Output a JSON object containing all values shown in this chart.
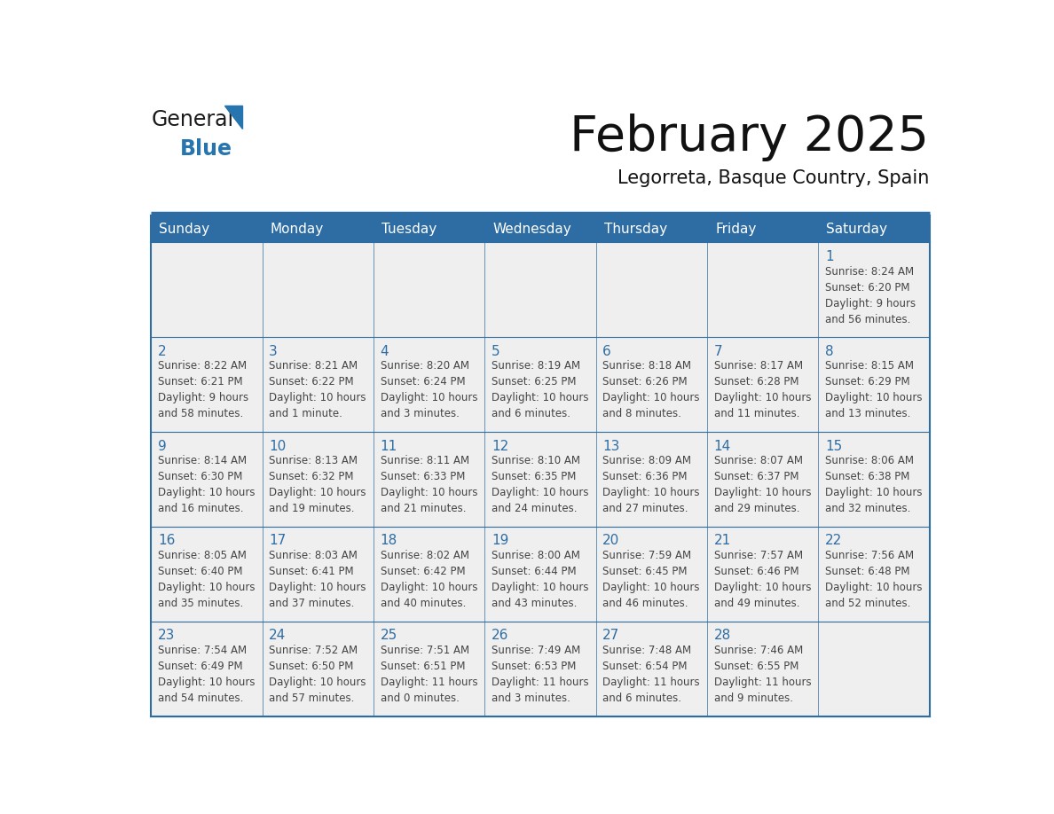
{
  "title": "February 2025",
  "subtitle": "Legorreta, Basque Country, Spain",
  "header_bg": "#2E6DA4",
  "header_text": "#FFFFFF",
  "cell_bg": "#EFEFEF",
  "border_color": "#2E6DA4",
  "text_color": "#444444",
  "day_num_color": "#2E6DA4",
  "days_of_week": [
    "Sunday",
    "Monday",
    "Tuesday",
    "Wednesday",
    "Thursday",
    "Friday",
    "Saturday"
  ],
  "weeks": [
    [
      {
        "day": "",
        "info": ""
      },
      {
        "day": "",
        "info": ""
      },
      {
        "day": "",
        "info": ""
      },
      {
        "day": "",
        "info": ""
      },
      {
        "day": "",
        "info": ""
      },
      {
        "day": "",
        "info": ""
      },
      {
        "day": "1",
        "info": "Sunrise: 8:24 AM\nSunset: 6:20 PM\nDaylight: 9 hours\nand 56 minutes."
      }
    ],
    [
      {
        "day": "2",
        "info": "Sunrise: 8:22 AM\nSunset: 6:21 PM\nDaylight: 9 hours\nand 58 minutes."
      },
      {
        "day": "3",
        "info": "Sunrise: 8:21 AM\nSunset: 6:22 PM\nDaylight: 10 hours\nand 1 minute."
      },
      {
        "day": "4",
        "info": "Sunrise: 8:20 AM\nSunset: 6:24 PM\nDaylight: 10 hours\nand 3 minutes."
      },
      {
        "day": "5",
        "info": "Sunrise: 8:19 AM\nSunset: 6:25 PM\nDaylight: 10 hours\nand 6 minutes."
      },
      {
        "day": "6",
        "info": "Sunrise: 8:18 AM\nSunset: 6:26 PM\nDaylight: 10 hours\nand 8 minutes."
      },
      {
        "day": "7",
        "info": "Sunrise: 8:17 AM\nSunset: 6:28 PM\nDaylight: 10 hours\nand 11 minutes."
      },
      {
        "day": "8",
        "info": "Sunrise: 8:15 AM\nSunset: 6:29 PM\nDaylight: 10 hours\nand 13 minutes."
      }
    ],
    [
      {
        "day": "9",
        "info": "Sunrise: 8:14 AM\nSunset: 6:30 PM\nDaylight: 10 hours\nand 16 minutes."
      },
      {
        "day": "10",
        "info": "Sunrise: 8:13 AM\nSunset: 6:32 PM\nDaylight: 10 hours\nand 19 minutes."
      },
      {
        "day": "11",
        "info": "Sunrise: 8:11 AM\nSunset: 6:33 PM\nDaylight: 10 hours\nand 21 minutes."
      },
      {
        "day": "12",
        "info": "Sunrise: 8:10 AM\nSunset: 6:35 PM\nDaylight: 10 hours\nand 24 minutes."
      },
      {
        "day": "13",
        "info": "Sunrise: 8:09 AM\nSunset: 6:36 PM\nDaylight: 10 hours\nand 27 minutes."
      },
      {
        "day": "14",
        "info": "Sunrise: 8:07 AM\nSunset: 6:37 PM\nDaylight: 10 hours\nand 29 minutes."
      },
      {
        "day": "15",
        "info": "Sunrise: 8:06 AM\nSunset: 6:38 PM\nDaylight: 10 hours\nand 32 minutes."
      }
    ],
    [
      {
        "day": "16",
        "info": "Sunrise: 8:05 AM\nSunset: 6:40 PM\nDaylight: 10 hours\nand 35 minutes."
      },
      {
        "day": "17",
        "info": "Sunrise: 8:03 AM\nSunset: 6:41 PM\nDaylight: 10 hours\nand 37 minutes."
      },
      {
        "day": "18",
        "info": "Sunrise: 8:02 AM\nSunset: 6:42 PM\nDaylight: 10 hours\nand 40 minutes."
      },
      {
        "day": "19",
        "info": "Sunrise: 8:00 AM\nSunset: 6:44 PM\nDaylight: 10 hours\nand 43 minutes."
      },
      {
        "day": "20",
        "info": "Sunrise: 7:59 AM\nSunset: 6:45 PM\nDaylight: 10 hours\nand 46 minutes."
      },
      {
        "day": "21",
        "info": "Sunrise: 7:57 AM\nSunset: 6:46 PM\nDaylight: 10 hours\nand 49 minutes."
      },
      {
        "day": "22",
        "info": "Sunrise: 7:56 AM\nSunset: 6:48 PM\nDaylight: 10 hours\nand 52 minutes."
      }
    ],
    [
      {
        "day": "23",
        "info": "Sunrise: 7:54 AM\nSunset: 6:49 PM\nDaylight: 10 hours\nand 54 minutes."
      },
      {
        "day": "24",
        "info": "Sunrise: 7:52 AM\nSunset: 6:50 PM\nDaylight: 10 hours\nand 57 minutes."
      },
      {
        "day": "25",
        "info": "Sunrise: 7:51 AM\nSunset: 6:51 PM\nDaylight: 11 hours\nand 0 minutes."
      },
      {
        "day": "26",
        "info": "Sunrise: 7:49 AM\nSunset: 6:53 PM\nDaylight: 11 hours\nand 3 minutes."
      },
      {
        "day": "27",
        "info": "Sunrise: 7:48 AM\nSunset: 6:54 PM\nDaylight: 11 hours\nand 6 minutes."
      },
      {
        "day": "28",
        "info": "Sunrise: 7:46 AM\nSunset: 6:55 PM\nDaylight: 11 hours\nand 9 minutes."
      },
      {
        "day": "",
        "info": ""
      }
    ]
  ],
  "logo_general_color": "#1a1a1a",
  "logo_blue_color": "#2775AE",
  "logo_triangle_color": "#2775AE",
  "title_fontsize": 40,
  "subtitle_fontsize": 15,
  "header_fontsize": 11,
  "day_num_fontsize": 11,
  "info_fontsize": 8.5
}
